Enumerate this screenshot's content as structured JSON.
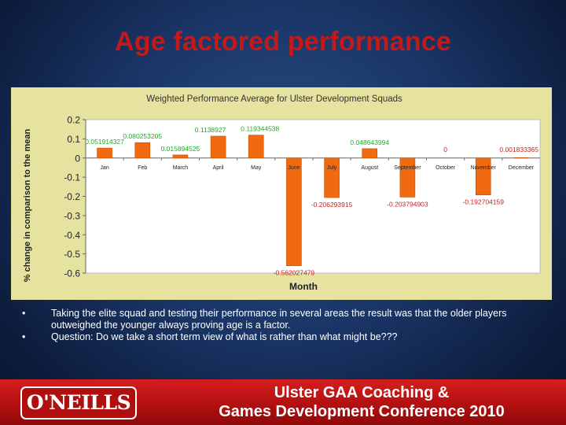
{
  "slide": {
    "title": "Age factored performance",
    "bullets": [
      "Taking the elite squad and testing their performance in several areas the result was that the older players outweighed the younger always proving age is a factor.",
      "Question: Do we take a short term view of what is rather than what might be???"
    ],
    "bullet_char": "•"
  },
  "footer": {
    "logo": "O'NEILLS",
    "line1": "Ulster GAA Coaching &",
    "line2": "Games Development Conference 2010"
  },
  "colors": {
    "title": "#c21a1a",
    "bar": "#f26a0f",
    "label": "#22aa22",
    "negative_label": "#c81e1e",
    "chart_bg": "#e6e3a0"
  },
  "chart_data": {
    "type": "bar",
    "title": "Weighted Performance Average for Ulster Development Squads",
    "xlabel": "Month",
    "ylabel": "% change in comparison to the mean",
    "categories": [
      "Jan",
      "Feb",
      "March",
      "April",
      "May",
      "June",
      "July",
      "August",
      "September",
      "October",
      "November",
      "December"
    ],
    "values": [
      0.051914327,
      0.080253205,
      0.015894525,
      0.1138927,
      0.119344538,
      -0.562027479,
      -0.206293915,
      0.048643994,
      -0.203794903,
      0,
      -0.192704159,
      0.001833365
    ],
    "data_labels": [
      "0.051914327",
      "0.080253205",
      "0.015894525",
      "0.1138927",
      "0.119344538",
      "-0.562027479",
      "-0.206293915",
      "0.048643994",
      "-0.203794903",
      "0",
      "-0.192704159",
      "0.001833365"
    ],
    "yticks": [
      "0.2",
      "0.1",
      "0",
      "-0.1",
      "-0.2",
      "-0.3",
      "-0.4",
      "-0.5",
      "-0.6"
    ],
    "ylim": [
      -0.6,
      0.2
    ],
    "grid": false,
    "legend": "none"
  }
}
